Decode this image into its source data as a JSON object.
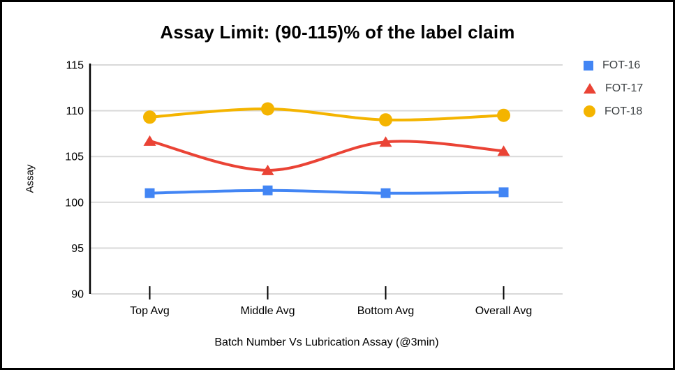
{
  "title": "Assay Limit: (90-115)% of the label claim",
  "chart_data": {
    "type": "line",
    "categories": [
      "Top Avg",
      "Middle Avg",
      "Bottom Avg",
      "Overall Avg"
    ],
    "series": [
      {
        "name": "FOT-16",
        "color": "#4285F4",
        "marker": "square",
        "values": [
          101.0,
          101.3,
          101.0,
          101.1
        ]
      },
      {
        "name": "FOT-17",
        "color": "#EA4335",
        "marker": "triangle",
        "values": [
          106.7,
          103.5,
          106.6,
          105.6
        ]
      },
      {
        "name": "FOT-18",
        "color": "#F4B400",
        "marker": "circle",
        "values": [
          109.3,
          110.2,
          109.0,
          109.5
        ]
      }
    ],
    "title": "Assay Limit: (90-115)% of the label claim",
    "xlabel": "Batch Number Vs Lubrication Assay (@3min)",
    "ylabel": "Assay",
    "ylim": [
      90,
      115
    ],
    "yticks": [
      90,
      95,
      100,
      105,
      110,
      115
    ],
    "grid": true,
    "line_smooth": true,
    "legend_position": "right-top"
  },
  "colors": {
    "grid": "#d9d9d9",
    "axis": "#000000",
    "tick_text": "#000000",
    "legend_text": "#3c4043",
    "background": "#ffffff",
    "border": "#000000"
  }
}
